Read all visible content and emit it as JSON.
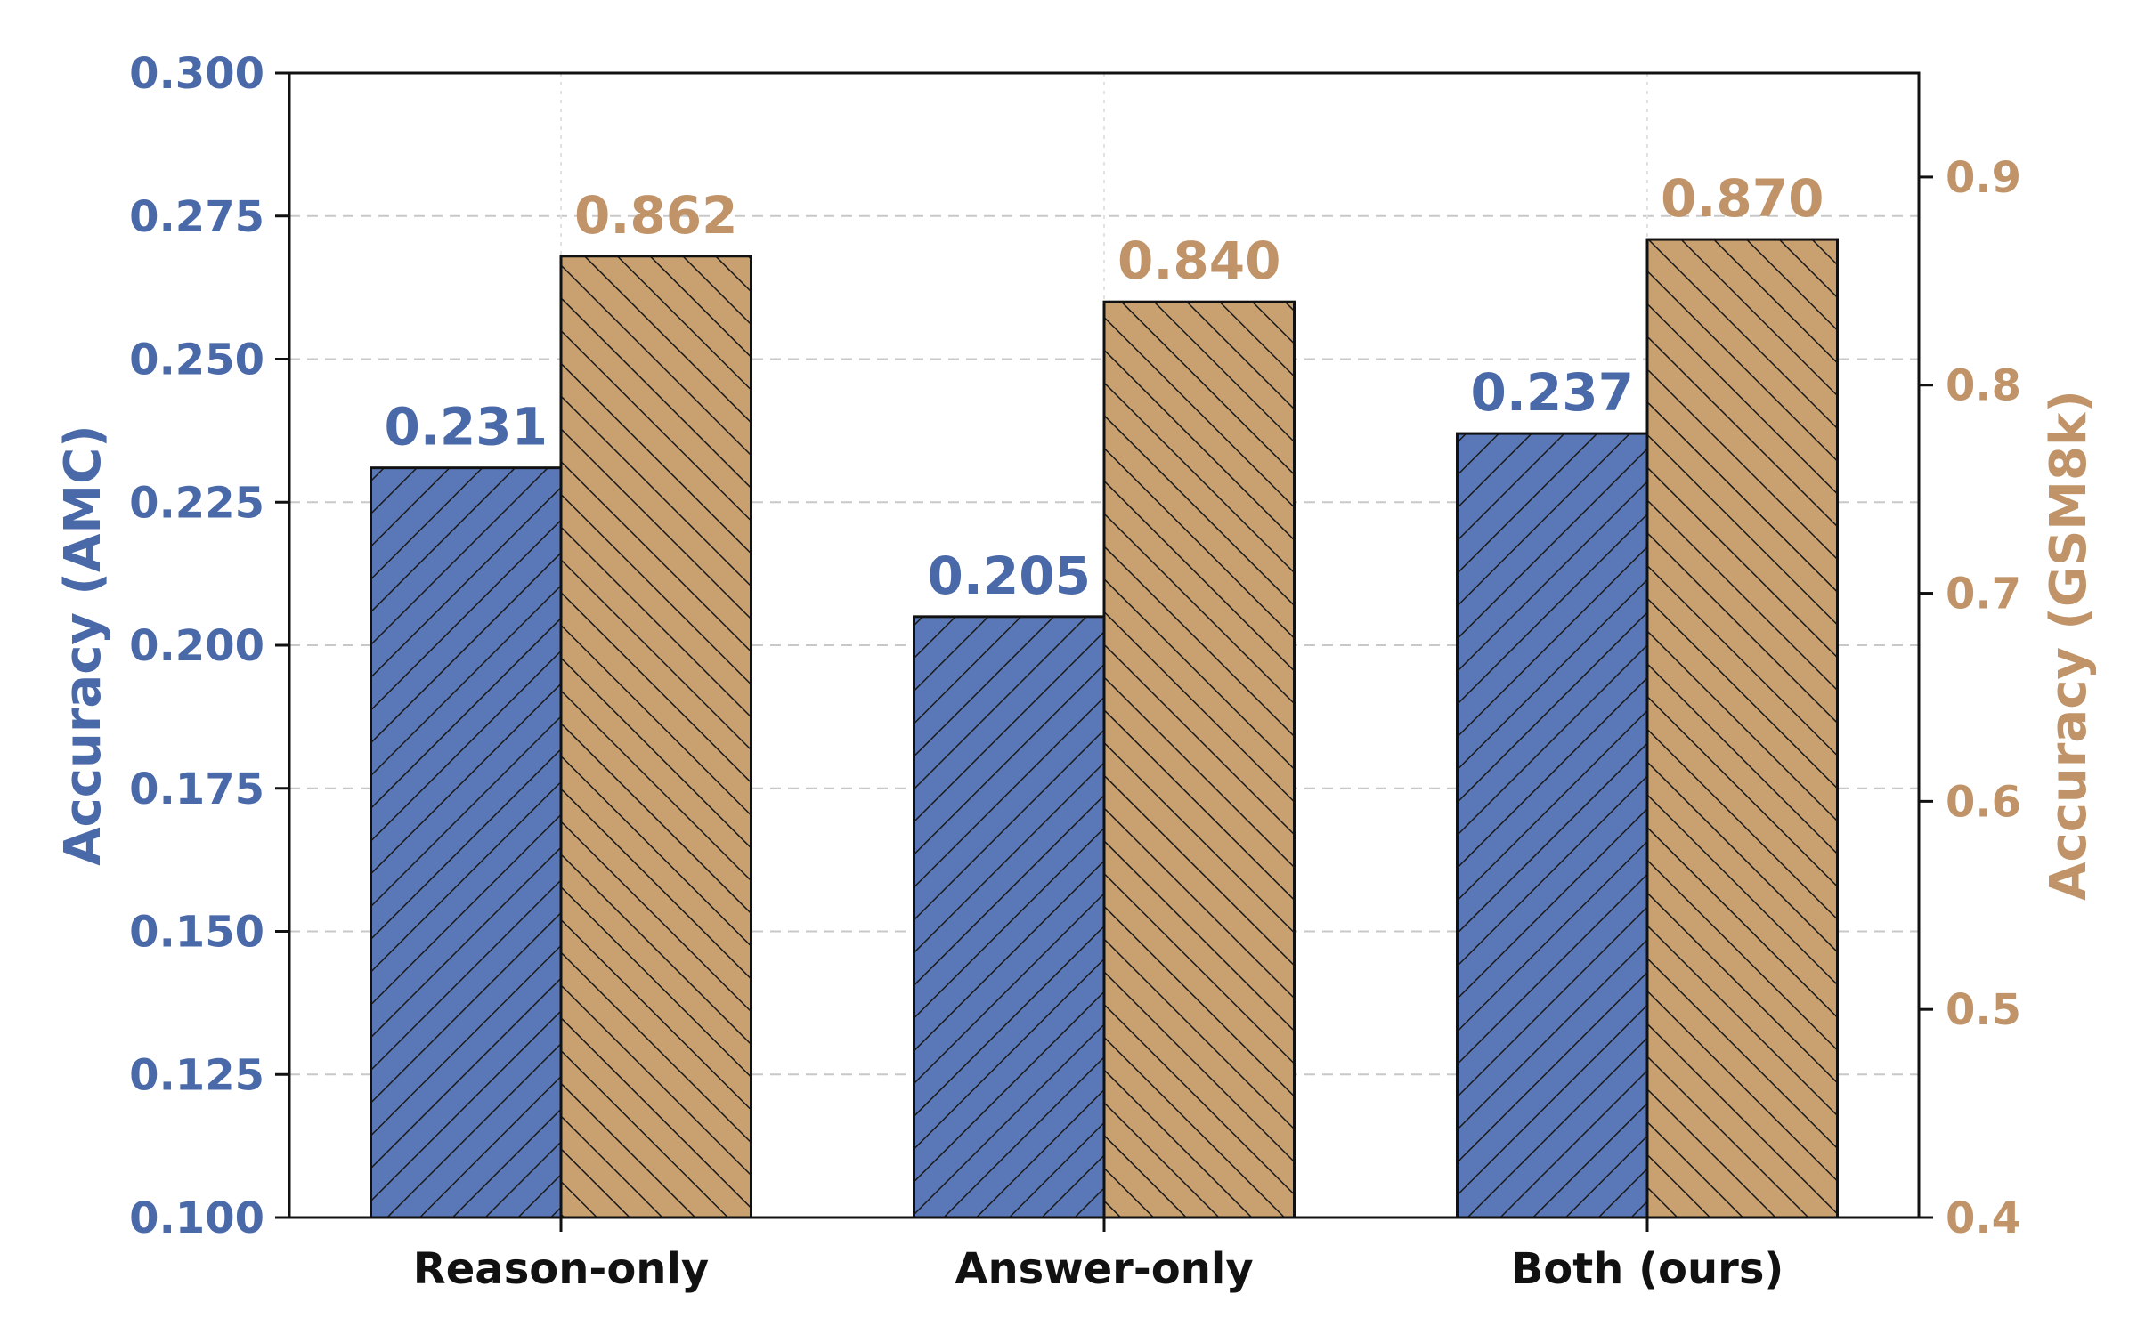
{
  "chart_data": {
    "type": "bar",
    "categories": [
      "Reason-only",
      "Answer-only",
      "Both (ours)"
    ],
    "series": [
      {
        "axis": "left",
        "color": "#5a78b8",
        "values": [
          0.231,
          0.205,
          0.237
        ],
        "labels": [
          "0.231",
          "0.205",
          "0.237"
        ],
        "hatch": "forward-diagonal"
      },
      {
        "axis": "right",
        "color": "#c9a070",
        "values": [
          0.862,
          0.84,
          0.87
        ],
        "labels": [
          "0.862",
          "0.840",
          "0.870"
        ],
        "hatch": "backward-diagonal"
      }
    ],
    "ylabel_left": "Accuracy (AMC)",
    "ylabel_right": "Accuracy (GSM8k)",
    "ylim_left": [
      0.1,
      0.3
    ],
    "ylim_right": [
      0.4,
      0.95
    ],
    "yticks_left": [
      "0.100",
      "0.125",
      "0.150",
      "0.175",
      "0.200",
      "0.225",
      "0.250",
      "0.275",
      "0.300"
    ],
    "yticks_right": [
      "0.4",
      "0.5",
      "0.6",
      "0.7",
      "0.8",
      "0.9"
    ],
    "grid": true,
    "colors": {
      "left_axis": "#4a69a8",
      "right_axis": "#c09468"
    }
  }
}
